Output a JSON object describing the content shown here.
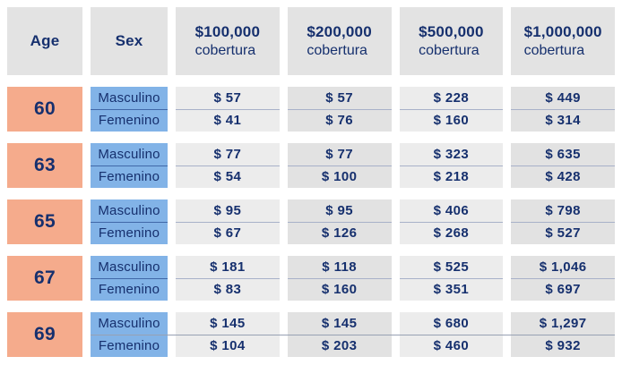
{
  "table": {
    "headers": {
      "age": "Age",
      "sex": "Sex"
    },
    "coverage_headers": [
      {
        "amount": "$100,000",
        "label": "cobertura"
      },
      {
        "amount": "$200,000",
        "label": "cobertura"
      },
      {
        "amount": "$500,000",
        "label": "cobertura"
      },
      {
        "amount": "$1,000,000",
        "label": "cobertura"
      }
    ],
    "sex_labels": {
      "male": "Masculino",
      "female": "Femenino"
    },
    "rows": [
      {
        "age": "60",
        "male": [
          "$ 57",
          "$ 57",
          "$ 228",
          "$ 449"
        ],
        "female": [
          "$ 41",
          "$ 76",
          "$ 160",
          "$ 314"
        ]
      },
      {
        "age": "63",
        "male": [
          "$ 77",
          "$ 77",
          "$ 323",
          "$ 635"
        ],
        "female": [
          "$ 54",
          "$ 100",
          "$ 218",
          "$ 428"
        ]
      },
      {
        "age": "65",
        "male": [
          "$ 95",
          "$ 95",
          "$ 406",
          "$ 798"
        ],
        "female": [
          "$ 67",
          "$ 126",
          "$ 268",
          "$ 527"
        ]
      },
      {
        "age": "67",
        "male": [
          "$ 181",
          "$ 118",
          "$ 525",
          "$ 1,046"
        ],
        "female": [
          "$ 83",
          "$ 160",
          "$ 351",
          "$ 697"
        ]
      },
      {
        "age": "69",
        "male": [
          "$ 145",
          "$ 145",
          "$ 680",
          "$ 1,297"
        ],
        "female": [
          "$ 104",
          "$ 203",
          "$ 460",
          "$ 932"
        ]
      }
    ]
  },
  "colors": {
    "header_bg": "#e3e3e3",
    "age_bg": "#f5ab8c",
    "sex_bg": "#82b3e7",
    "rate_bg_light": "#ececec",
    "rate_bg_dark": "#e2e2e2",
    "text_navy": "#16306e",
    "sex_divider": "#4068a8",
    "rate_divider": "#a8b1c9"
  },
  "chart_data": {
    "type": "table",
    "title": "Life insurance monthly rates by age, sex and coverage",
    "columns": [
      "Age",
      "Sex",
      "$100,000 cobertura",
      "$200,000 cobertura",
      "$500,000 cobertura",
      "$1,000,000 cobertura"
    ],
    "rows": [
      [
        "60",
        "Masculino",
        "$ 57",
        "$ 57",
        "$ 228",
        "$ 449"
      ],
      [
        "60",
        "Femenino",
        "$ 41",
        "$ 76",
        "$ 160",
        "$ 314"
      ],
      [
        "63",
        "Masculino",
        "$ 77",
        "$ 77",
        "$ 323",
        "$ 635"
      ],
      [
        "63",
        "Femenino",
        "$ 54",
        "$ 100",
        "$ 218",
        "$ 428"
      ],
      [
        "65",
        "Masculino",
        "$ 95",
        "$ 95",
        "$ 406",
        "$ 798"
      ],
      [
        "65",
        "Femenino",
        "$ 67",
        "$ 126",
        "$ 268",
        "$ 527"
      ],
      [
        "67",
        "Masculino",
        "$ 181",
        "$ 118",
        "$ 525",
        "$ 1,046"
      ],
      [
        "67",
        "Femenino",
        "$ 83",
        "$ 160",
        "$ 351",
        "$ 697"
      ],
      [
        "69",
        "Masculino",
        "$ 145",
        "$ 145",
        "$ 680",
        "$ 1,297"
      ],
      [
        "69",
        "Femenino",
        "$ 104",
        "$ 203",
        "$ 460",
        "$ 932"
      ]
    ]
  }
}
